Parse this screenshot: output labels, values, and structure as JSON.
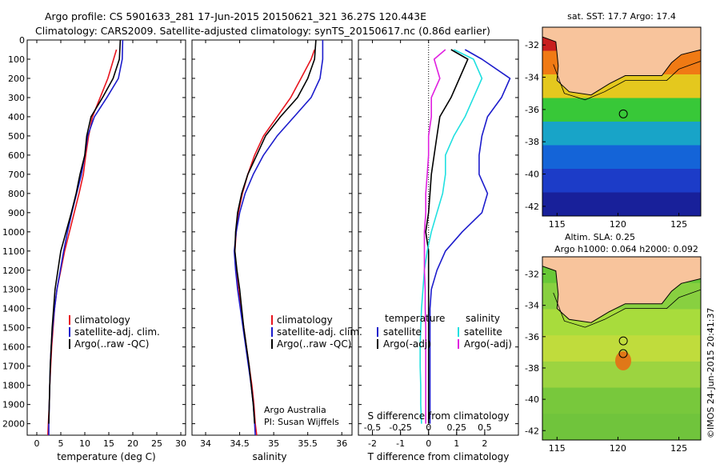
{
  "header": {
    "line1": "Argo profile: CS 5901633_281 17-Jun-2015 20150621_321 36.27S 120.443E",
    "line2": "Climatology: CARS2009. Satellite-adjusted climatology: synTS_20150617.nc (0.86d earlier)"
  },
  "colors": {
    "climatology": "#e8141e",
    "satellite": "#1c1ccc",
    "argo": "#000000",
    "satellite_diff": "#20e0e0",
    "argo_diff": "#e020e0",
    "land": "#f8c49c"
  },
  "chart_data": [
    {
      "type": "line",
      "name": "temperature",
      "xlabel": "temperature (deg C)",
      "ylabel": "",
      "xlim": [
        -2,
        31
      ],
      "ylim": [
        2060,
        0
      ],
      "xticks": [
        0,
        5,
        10,
        15,
        20,
        25,
        30
      ],
      "yticks": [
        0,
        100,
        200,
        300,
        400,
        500,
        600,
        700,
        800,
        900,
        1000,
        1100,
        1200,
        1300,
        1400,
        1500,
        1600,
        1700,
        1800,
        1900,
        2000
      ],
      "legend": [
        "climatology",
        "satellite-adj. clim.",
        "Argo(..raw -QC)"
      ],
      "legend_position": "lower-right",
      "series": [
        {
          "name": "climatology",
          "x": [
            16.6,
            16.0,
            14.8,
            13.2,
            11.6,
            10.8,
            10.2,
            9.7,
            8.8,
            7.8,
            6.8,
            5.8,
            5.0,
            4.2,
            3.7,
            3.4,
            3.1,
            2.9,
            2.7,
            2.6,
            2.4,
            2.3
          ],
          "y": [
            50,
            100,
            200,
            300,
            400,
            500,
            600,
            700,
            800,
            900,
            1000,
            1100,
            1200,
            1300,
            1400,
            1500,
            1600,
            1700,
            1800,
            1900,
            2000,
            2060
          ]
        },
        {
          "name": "satellite-adj. clim.",
          "x": [
            17.9,
            17.8,
            17.0,
            14.6,
            12.0,
            10.6,
            10.0,
            9.3,
            8.3,
            7.3,
            6.4,
            5.6,
            4.9,
            4.2,
            3.7,
            3.3,
            3.0,
            2.8,
            2.7,
            2.6,
            2.5,
            2.5
          ],
          "y": [
            0,
            100,
            200,
            300,
            400,
            500,
            600,
            700,
            800,
            900,
            1000,
            1100,
            1200,
            1300,
            1400,
            1500,
            1600,
            1700,
            1800,
            1900,
            2000,
            2060
          ]
        },
        {
          "name": "Argo(..raw -QC)",
          "x": [
            17.4,
            17.2,
            15.9,
            13.7,
            11.3,
            10.4,
            10.0,
            9.0,
            8.2,
            7.2,
            6.1,
            5.0,
            4.4,
            3.8,
            3.5,
            3.2,
            3.0,
            2.8,
            2.7,
            2.6,
            2.5
          ],
          "y": [
            0,
            100,
            200,
            300,
            400,
            500,
            600,
            700,
            800,
            900,
            1000,
            1100,
            1200,
            1300,
            1400,
            1500,
            1600,
            1700,
            1800,
            1900,
            2000
          ]
        }
      ]
    },
    {
      "type": "line",
      "name": "salinity",
      "xlabel": "salinity",
      "ylabel": "",
      "xlim": [
        33.8,
        36.15
      ],
      "ylim": [
        2060,
        0
      ],
      "xticks": [
        34,
        34.5,
        35,
        35.5,
        36
      ],
      "legend": [
        "climatology",
        "satellite-adj. clim.",
        "Argo(..raw -QC)"
      ],
      "legend_position": "lower-right",
      "annotations": [
        "Argo Australia",
        "PI: Susan Wijffels"
      ],
      "series": [
        {
          "name": "climatology",
          "x": [
            35.6,
            35.55,
            35.4,
            35.25,
            35.05,
            34.85,
            34.72,
            34.62,
            34.54,
            34.48,
            34.45,
            34.43,
            34.45,
            34.48,
            34.52,
            34.56,
            34.6,
            34.64,
            34.68,
            34.71,
            34.73,
            34.75
          ],
          "y": [
            50,
            100,
            200,
            300,
            400,
            500,
            600,
            700,
            800,
            900,
            1000,
            1100,
            1200,
            1300,
            1400,
            1500,
            1600,
            1700,
            1800,
            1900,
            2000,
            2060
          ]
        },
        {
          "name": "satellite-adj. clim.",
          "x": [
            35.72,
            35.72,
            35.68,
            35.55,
            35.3,
            35.05,
            34.85,
            34.7,
            34.58,
            34.5,
            34.45,
            34.42,
            34.44,
            34.47,
            34.51,
            34.55,
            34.59,
            34.63,
            34.67,
            34.7,
            34.72,
            34.73
          ],
          "y": [
            0,
            100,
            200,
            300,
            400,
            500,
            600,
            700,
            800,
            900,
            1000,
            1100,
            1200,
            1300,
            1400,
            1500,
            1600,
            1700,
            1800,
            1900,
            2000,
            2060
          ]
        },
        {
          "name": "Argo(..raw -QC)",
          "x": [
            35.62,
            35.6,
            35.5,
            35.35,
            35.1,
            34.88,
            34.75,
            34.62,
            34.53,
            34.47,
            34.44,
            34.43,
            34.46,
            34.5,
            34.53,
            34.56,
            34.6,
            34.64,
            34.67,
            34.7,
            34.72
          ],
          "y": [
            0,
            100,
            200,
            300,
            400,
            500,
            600,
            700,
            800,
            900,
            1000,
            1100,
            1200,
            1300,
            1400,
            1500,
            1600,
            1700,
            1800,
            1900,
            2000
          ]
        }
      ]
    },
    {
      "type": "line",
      "name": "difference",
      "xlabel": "T difference from climatology",
      "xlabel_top": "S difference from climatology",
      "xlim": [
        -2.5,
        3.2
      ],
      "ylim": [
        2060,
        0
      ],
      "xticks": [
        -2,
        -1,
        0,
        1,
        2
      ],
      "xticks_s": [
        -0.5,
        -0.25,
        0,
        0.25,
        0.5
      ],
      "xticklabels_s": [
        "-0.5",
        "-0.25",
        "0",
        "0.25",
        "0.5"
      ],
      "legend": {
        "temperature": [
          "satellite",
          "Argo(-adj)"
        ],
        "salinity": [
          "satellite",
          "Argo(-adj)"
        ]
      },
      "legend_headers": [
        "temperature",
        "salinity"
      ],
      "series": [
        {
          "name": "T satellite",
          "x": [
            1.3,
            1.9,
            2.9,
            2.6,
            2.1,
            1.9,
            1.8,
            1.8,
            2.1,
            1.9,
            1.2,
            0.6,
            0.3,
            0.1,
            0.05,
            0.05,
            0.05,
            0.05,
            0.05,
            0.05,
            0.05
          ],
          "y": [
            50,
            100,
            200,
            300,
            400,
            500,
            600,
            700,
            800,
            900,
            1000,
            1100,
            1200,
            1300,
            1400,
            1500,
            1600,
            1700,
            1800,
            1900,
            2000
          ]
        },
        {
          "name": "T Argo(-adj)",
          "x": [
            0.8,
            1.4,
            1.1,
            0.8,
            0.4,
            0.3,
            0.2,
            0.1,
            0.05,
            0.0,
            -0.1,
            0.0,
            0.0,
            0.0,
            0.0,
            0.0,
            0.0,
            0.0,
            0.0,
            0.0,
            0.0
          ],
          "y": [
            50,
            100,
            200,
            300,
            400,
            500,
            600,
            700,
            800,
            900,
            1000,
            1100,
            1200,
            1300,
            1400,
            1500,
            1600,
            1700,
            1800,
            1900,
            2000
          ]
        },
        {
          "name": "S satellite",
          "x": [
            0.9,
            1.6,
            1.9,
            1.6,
            1.3,
            0.9,
            0.6,
            0.6,
            0.5,
            0.3,
            0.1,
            -0.05,
            -0.15,
            -0.2,
            -0.25,
            -0.28,
            -0.3,
            -0.3,
            -0.28,
            -0.28,
            -0.25
          ],
          "y": [
            50,
            100,
            200,
            300,
            400,
            500,
            600,
            700,
            800,
            900,
            1000,
            1100,
            1200,
            1300,
            1400,
            1500,
            1600,
            1700,
            1800,
            1900,
            2000
          ]
        },
        {
          "name": "S Argo(-adj)",
          "x": [
            0.6,
            0.2,
            0.4,
            0.1,
            0.1,
            0.0,
            0.0,
            -0.05,
            -0.1,
            -0.1,
            -0.15,
            -0.15,
            -0.15,
            -0.12,
            -0.12,
            -0.1,
            -0.1,
            -0.1,
            -0.1,
            -0.1,
            -0.1
          ],
          "y": [
            50,
            100,
            200,
            300,
            400,
            500,
            600,
            700,
            800,
            900,
            1000,
            1100,
            1200,
            1300,
            1400,
            1500,
            1600,
            1700,
            1800,
            1900,
            2000
          ]
        }
      ]
    },
    {
      "type": "heatmap",
      "name": "sst-map",
      "title": "sat. SST: 17.7 Argo: 17.4",
      "xticks": [
        115,
        120,
        125
      ],
      "yticks": [
        -32,
        -34,
        -36,
        -38,
        -40,
        -42
      ],
      "xlim": [
        113.8,
        126.8
      ],
      "ylim": [
        -42.6,
        -30.9
      ],
      "float_position": [
        120.44,
        -36.27
      ]
    },
    {
      "type": "heatmap",
      "name": "sla-map",
      "title": "Altim. SLA: 0.25",
      "subtitle": "Argo h1000: 0.064 h2000: 0.092",
      "xticks": [
        115,
        120,
        125
      ],
      "yticks": [
        -32,
        -34,
        -36,
        -38,
        -40,
        -42
      ],
      "xlim": [
        113.8,
        126.8
      ],
      "ylim": [
        -42.6,
        -30.9
      ],
      "float_position": [
        120.44,
        -36.27
      ]
    }
  ],
  "credit": "©IMOS 24-Jun-2015 20:41:37"
}
